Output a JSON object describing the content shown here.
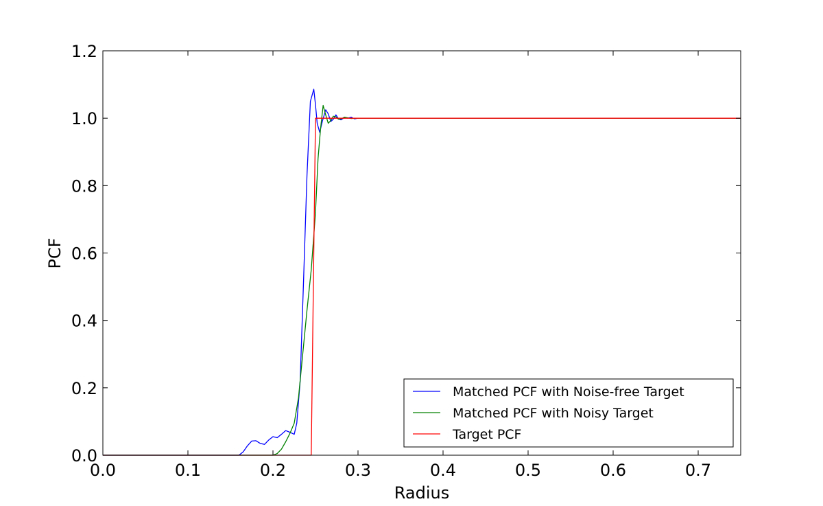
{
  "chart_data": {
    "type": "line",
    "title": "",
    "xlabel": "Radius",
    "ylabel": "PCF",
    "xlim": [
      0.0,
      0.75
    ],
    "ylim": [
      0.0,
      1.2
    ],
    "xticks": [
      "0.0",
      "0.1",
      "0.2",
      "0.3",
      "0.4",
      "0.5",
      "0.6",
      "0.7"
    ],
    "yticks": [
      "0.0",
      "0.2",
      "0.4",
      "0.6",
      "0.8",
      "1.0",
      "1.2"
    ],
    "grid": false,
    "legend_position": "lower-right",
    "series": [
      {
        "name": "Matched PCF with Noise-free Target",
        "color": "#0000ff",
        "x": [
          0.0,
          0.16,
          0.165,
          0.17,
          0.175,
          0.18,
          0.185,
          0.19,
          0.195,
          0.2,
          0.205,
          0.21,
          0.215,
          0.22,
          0.225,
          0.228,
          0.232,
          0.236,
          0.24,
          0.244,
          0.248,
          0.25,
          0.252,
          0.255,
          0.258,
          0.262,
          0.265,
          0.268,
          0.271,
          0.274,
          0.277,
          0.28,
          0.284,
          0.288,
          0.292,
          0.296,
          0.3,
          0.305,
          0.75
        ],
        "y": [
          0.0,
          0.0,
          0.01,
          0.028,
          0.042,
          0.043,
          0.035,
          0.032,
          0.045,
          0.055,
          0.052,
          0.062,
          0.073,
          0.068,
          0.062,
          0.095,
          0.22,
          0.52,
          0.83,
          1.05,
          1.086,
          1.04,
          0.985,
          0.958,
          0.99,
          1.025,
          1.013,
          0.99,
          0.997,
          1.01,
          0.998,
          0.995,
          1.002,
          1.0,
          1.003,
          0.998,
          1.0,
          1.0,
          1.0
        ]
      },
      {
        "name": "Matched PCF with Noisy Target",
        "color": "#008000",
        "x": [
          0.0,
          0.2,
          0.205,
          0.21,
          0.215,
          0.22,
          0.225,
          0.23,
          0.235,
          0.24,
          0.245,
          0.25,
          0.253,
          0.256,
          0.259,
          0.262,
          0.265,
          0.268,
          0.271,
          0.274,
          0.277,
          0.28,
          0.284,
          0.288,
          0.292,
          0.296,
          0.3,
          0.305,
          0.75
        ],
        "y": [
          0.0,
          0.0,
          0.005,
          0.018,
          0.04,
          0.065,
          0.095,
          0.17,
          0.3,
          0.43,
          0.55,
          0.72,
          0.88,
          0.97,
          1.038,
          1.01,
          0.985,
          0.993,
          1.006,
          1.004,
          0.997,
          0.998,
          1.003,
          1.001,
          0.999,
          1.0,
          1.0,
          1.0,
          1.0
        ]
      },
      {
        "name": "Target PCF",
        "color": "#ff0000",
        "x": [
          0.0,
          0.245,
          0.25,
          0.75
        ],
        "y": [
          0.0,
          0.0,
          1.0,
          1.0
        ]
      }
    ]
  }
}
